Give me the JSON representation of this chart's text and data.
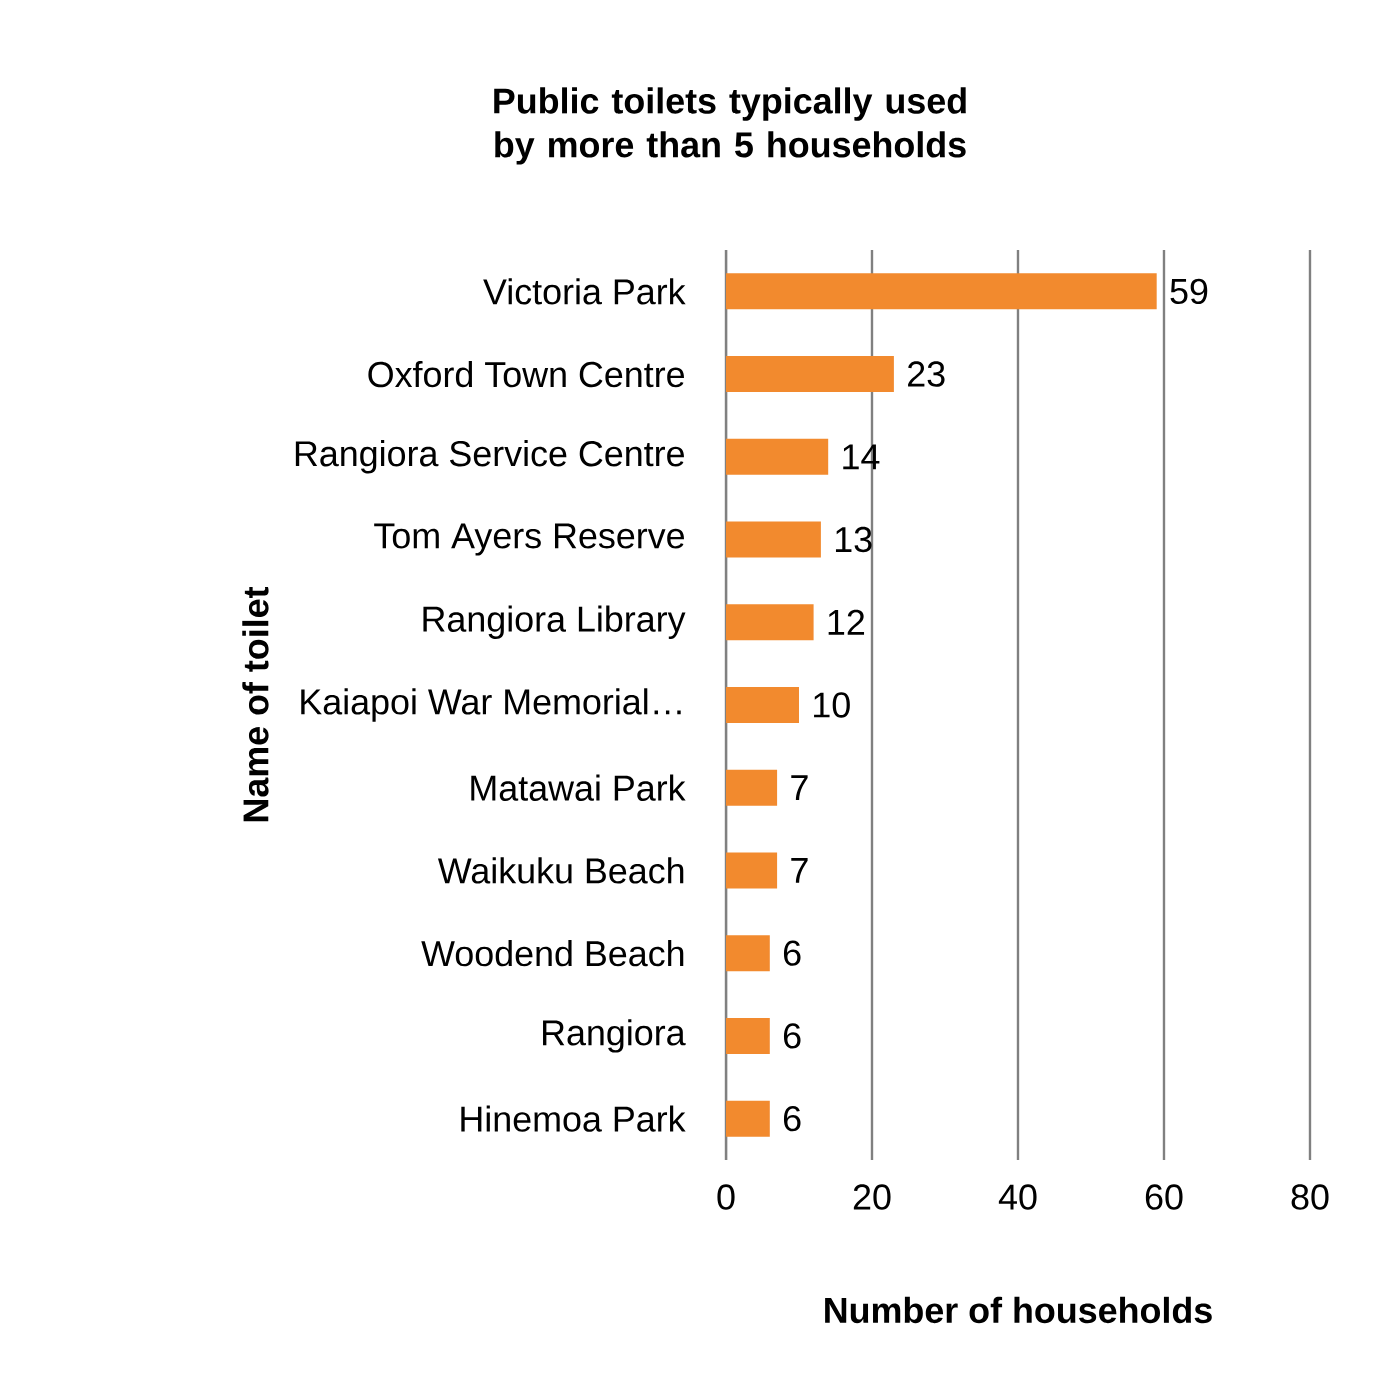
{
  "chart_data": {
    "type": "bar",
    "orientation": "horizontal",
    "title": "Public toilets typically used by more than 5 households",
    "xlabel": "Number of households",
    "ylabel": "Name of toilet",
    "categories": [
      "Victoria Park",
      "Oxford Town Centre",
      "Rangiora Service Centre",
      "Tom Ayers Reserve",
      "Rangiora Library",
      "Kaiapoi War Memorial…",
      "Matawai Park",
      "Waikuku Beach",
      "Woodend Beach",
      "Rangiora",
      "Hinemoa Park"
    ],
    "values": [
      59,
      23,
      14,
      13,
      12,
      10,
      7,
      7,
      6,
      6,
      6
    ],
    "color": "#f28a2e",
    "xlim": [
      0,
      80
    ],
    "xticks": [
      0,
      20,
      40,
      60,
      80
    ],
    "grid": "x",
    "data_labels": true
  }
}
